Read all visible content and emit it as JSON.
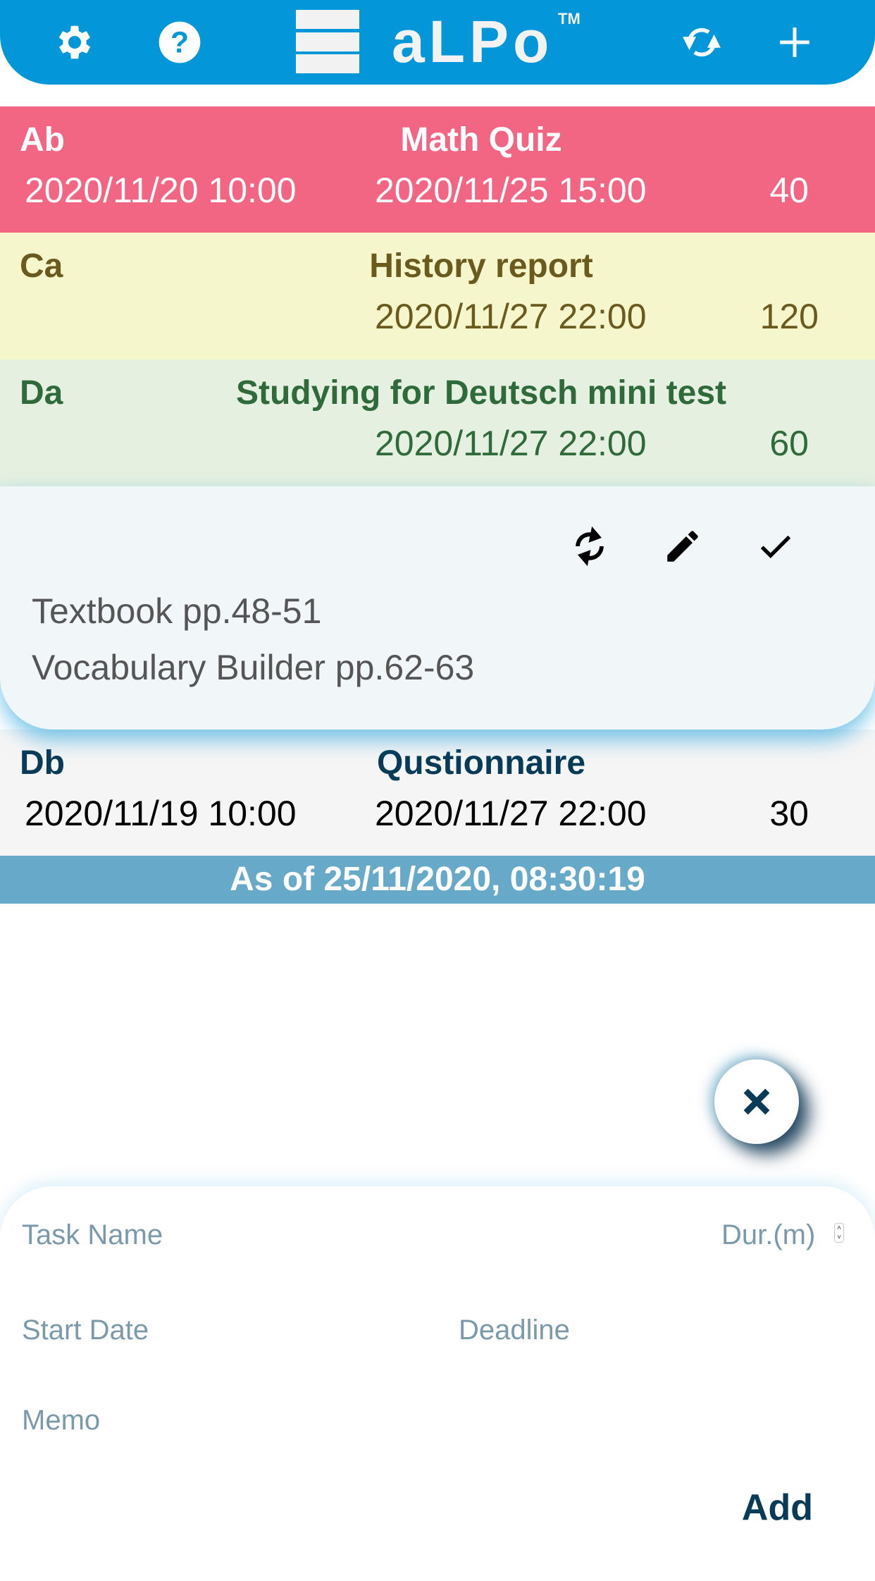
{
  "app": {
    "title": "aLPo",
    "trademark": "TM"
  },
  "header": {
    "icons": [
      "gear-icon",
      "help-icon",
      "sync-icon",
      "plus-icon"
    ]
  },
  "tasks": [
    {
      "code": "Ab",
      "title": "Math Quiz",
      "start": "2020/11/20 10:00",
      "deadline": "2020/11/25 15:00",
      "duration": "40",
      "bg": "#f26683",
      "color": "#ffffff"
    },
    {
      "code": "Ca",
      "title": "History report",
      "start": "",
      "deadline": "2020/11/27 22:00",
      "duration": "120",
      "bg": "#f6f6cc",
      "color": "#6b5a1e"
    },
    {
      "code": "Da",
      "title": "Studying for Deutsch mini test",
      "start": "",
      "deadline": "2020/11/27 22:00",
      "duration": "60",
      "bg": "#e5f0e0",
      "color": "#2f6b3a"
    },
    {
      "code": "Db",
      "title": "Qustionnaire",
      "start": "2020/11/19 10:00",
      "deadline": "2020/11/27 22:00",
      "duration": "30",
      "bg": "#f5f5f5",
      "color": "#000000",
      "title_color": "#073b57"
    }
  ],
  "expanded": {
    "memo": [
      "Textbook pp.48-51",
      "Vocabulary Builder pp.62-63"
    ],
    "actions": [
      "repeat-icon",
      "edit-icon",
      "check-icon"
    ]
  },
  "status": "As of 25/11/2020, 08:30:19",
  "form": {
    "task_name": "Task Name",
    "duration": "Dur.(m)",
    "start_date": "Start Date",
    "deadline": "Deadline",
    "memo": "Memo",
    "add": "Add"
  }
}
